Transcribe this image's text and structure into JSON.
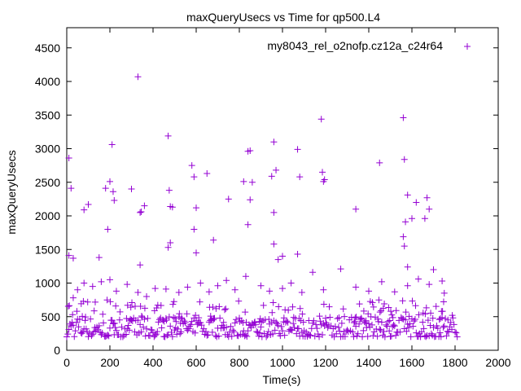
{
  "chart_data": {
    "type": "scatter",
    "title": "maxQueryUsecs vs Time for qp500.L4",
    "xlabel": "Time(s)",
    "ylabel": "maxQueryUsecs",
    "xlim": [
      0,
      2000
    ],
    "ylim": [
      0,
      4800
    ],
    "x_ticks": [
      0,
      200,
      400,
      600,
      800,
      1000,
      1200,
      1400,
      1600,
      1800,
      2000
    ],
    "y_ticks": [
      0,
      500,
      1000,
      1500,
      2000,
      2500,
      3000,
      3500,
      4000,
      4500
    ],
    "grid": false,
    "legend_position": "top-right",
    "marker": "+",
    "x_range_of_samples": [
      0,
      1810
    ],
    "baseline_band_usecs": [
      200,
      500
    ],
    "series": [
      {
        "name": "my8043_rel_o2nofp.cz12a_c24r64",
        "color": "#9400d3",
        "points": [
          [
            10,
            2860
          ],
          [
            20,
            2410
          ],
          [
            80,
            2090
          ],
          [
            100,
            2170
          ],
          [
            180,
            2410
          ],
          [
            200,
            2510
          ],
          [
            210,
            3060
          ],
          [
            215,
            2360
          ],
          [
            220,
            2230
          ],
          [
            300,
            2400
          ],
          [
            330,
            4070
          ],
          [
            340,
            2050
          ],
          [
            345,
            2060
          ],
          [
            360,
            2150
          ],
          [
            470,
            3190
          ],
          [
            475,
            2380
          ],
          [
            480,
            2140
          ],
          [
            490,
            2130
          ],
          [
            580,
            2750
          ],
          [
            590,
            2580
          ],
          [
            600,
            2120
          ],
          [
            650,
            2630
          ],
          [
            750,
            2250
          ],
          [
            820,
            2510
          ],
          [
            840,
            2960
          ],
          [
            850,
            2970
          ],
          [
            860,
            2500
          ],
          [
            850,
            2240
          ],
          [
            950,
            2590
          ],
          [
            960,
            3100
          ],
          [
            970,
            2680
          ],
          [
            960,
            2050
          ],
          [
            1070,
            2990
          ],
          [
            1080,
            2580
          ],
          [
            1180,
            3440
          ],
          [
            1185,
            2650
          ],
          [
            1190,
            2510
          ],
          [
            1195,
            2540
          ],
          [
            1340,
            2100
          ],
          [
            1450,
            2790
          ],
          [
            1560,
            3460
          ],
          [
            1565,
            2840
          ],
          [
            1580,
            2310
          ],
          [
            1620,
            2200
          ],
          [
            1660,
            1960
          ],
          [
            1670,
            2270
          ],
          [
            1680,
            2100
          ],
          [
            10,
            1410
          ],
          [
            30,
            1370
          ],
          [
            150,
            1380
          ],
          [
            190,
            1800
          ],
          [
            340,
            1270
          ],
          [
            470,
            1530
          ],
          [
            480,
            1600
          ],
          [
            590,
            1800
          ],
          [
            600,
            1450
          ],
          [
            680,
            1640
          ],
          [
            840,
            1870
          ],
          [
            960,
            1580
          ],
          [
            980,
            1350
          ],
          [
            1000,
            1400
          ],
          [
            1070,
            1430
          ],
          [
            1560,
            1690
          ],
          [
            1565,
            1550
          ],
          [
            1570,
            1910
          ],
          [
            1580,
            1240
          ],
          [
            1600,
            1960
          ],
          [
            1700,
            1200
          ],
          [
            1740,
            1030
          ],
          [
            30,
            780
          ],
          [
            50,
            900
          ],
          [
            80,
            1000
          ],
          [
            120,
            950
          ],
          [
            160,
            1020
          ],
          [
            200,
            1050
          ],
          [
            230,
            880
          ],
          [
            280,
            980
          ],
          [
            330,
            860
          ],
          [
            370,
            800
          ],
          [
            410,
            920
          ],
          [
            460,
            910
          ],
          [
            520,
            860
          ],
          [
            560,
            940
          ],
          [
            620,
            1000
          ],
          [
            660,
            870
          ],
          [
            700,
            960
          ],
          [
            740,
            1040
          ],
          [
            780,
            900
          ],
          [
            830,
            1100
          ],
          [
            900,
            960
          ],
          [
            940,
            880
          ],
          [
            1000,
            920
          ],
          [
            1040,
            1000
          ],
          [
            1090,
            860
          ],
          [
            1140,
            1160
          ],
          [
            1190,
            900
          ],
          [
            1270,
            1210
          ],
          [
            1340,
            940
          ],
          [
            1400,
            880
          ],
          [
            1460,
            1020
          ],
          [
            1520,
            870
          ],
          [
            1580,
            960
          ],
          [
            1630,
            1060
          ],
          [
            1680,
            980
          ],
          [
            1750,
            850
          ]
        ]
      }
    ]
  }
}
